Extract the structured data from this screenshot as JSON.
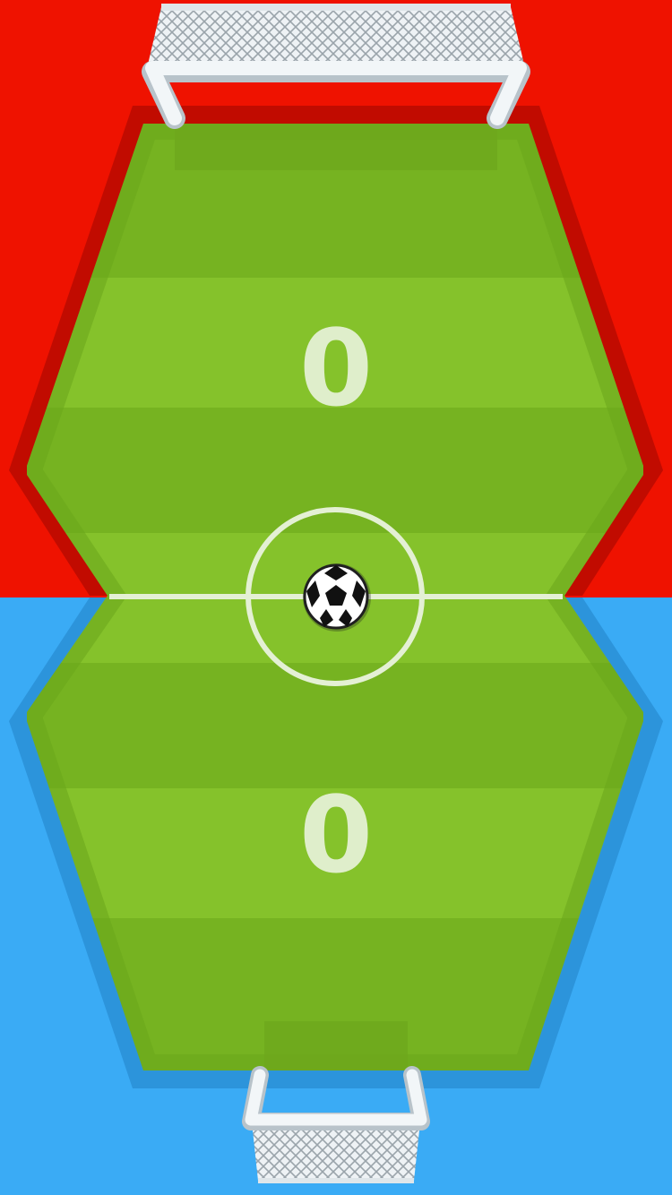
{
  "scoreboard": {
    "top_score": "0",
    "bottom_score": "0"
  },
  "colors": {
    "top_team": "#ef1200",
    "bottom_team": "#3aabf5",
    "pitch_light": "#84c12a",
    "pitch_dark": "#76b321",
    "line": "#e4f0d4",
    "goal_frame": "#eef3f6"
  },
  "icons": {
    "ball": "soccer-ball-icon",
    "top_goal": "goal-net-top",
    "bottom_goal": "goal-net-bottom"
  }
}
